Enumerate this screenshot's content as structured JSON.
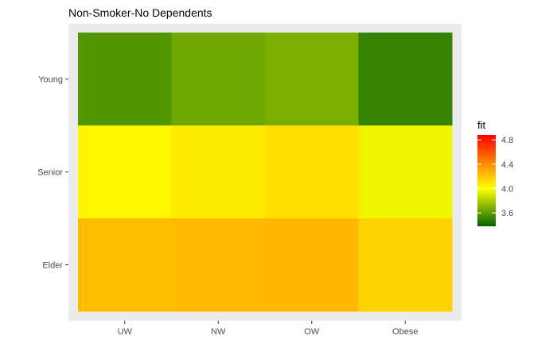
{
  "chart_data": {
    "type": "heatmap",
    "title": "Non-Smoker-No Dependents",
    "xlabel": "",
    "ylabel": "",
    "x_categories": [
      "UW",
      "NW",
      "OW",
      "Obese"
    ],
    "y_categories": [
      "Young",
      "Senior",
      "Elder"
    ],
    "values": [
      [
        3.58,
        3.65,
        3.68,
        3.51
      ],
      [
        4.03,
        4.07,
        4.11,
        3.96
      ],
      [
        4.23,
        4.24,
        4.25,
        4.16
      ]
    ],
    "legend": {
      "title": "fit",
      "ticks": [
        "3.6",
        "4.0",
        "4.4",
        "4.8"
      ],
      "tick_values": [
        3.6,
        4.0,
        4.4,
        4.8
      ],
      "range": [
        3.38,
        4.88
      ],
      "colors": [
        "#006400",
        "#ffff00",
        "#ff0000"
      ],
      "placement": "right"
    },
    "panel_background": "#ebebeb",
    "grid": true
  }
}
